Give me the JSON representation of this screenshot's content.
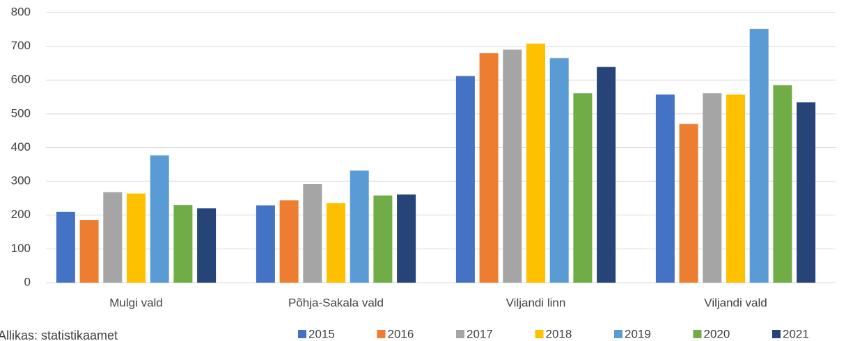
{
  "chart_data": {
    "type": "bar",
    "categories": [
      "Mulgi vald",
      "Põhja-Sakala vald",
      "Viljandi linn",
      "Viljandi vald"
    ],
    "series": [
      {
        "name": "2015",
        "color": "#4472c4",
        "values": [
          210,
          229,
          612,
          557
        ]
      },
      {
        "name": "2016",
        "color": "#ed7d31",
        "values": [
          185,
          244,
          680,
          470
        ]
      },
      {
        "name": "2017",
        "color": "#a5a5a5",
        "values": [
          268,
          292,
          690,
          561
        ]
      },
      {
        "name": "2018",
        "color": "#ffc000",
        "values": [
          264,
          236,
          708,
          557
        ]
      },
      {
        "name": "2019",
        "color": "#5b9bd5",
        "values": [
          377,
          332,
          665,
          751
        ]
      },
      {
        "name": "2020",
        "color": "#70ad47",
        "values": [
          230,
          258,
          561,
          585
        ]
      },
      {
        "name": "2021",
        "color": "#264478",
        "values": [
          220,
          261,
          639,
          534
        ]
      }
    ],
    "ylim": [
      0,
      800
    ],
    "yticks": [
      0,
      100,
      200,
      300,
      400,
      500,
      600,
      700,
      800
    ],
    "grid": true,
    "legend": "bottom",
    "source": "Allikas: statistikaamet"
  }
}
